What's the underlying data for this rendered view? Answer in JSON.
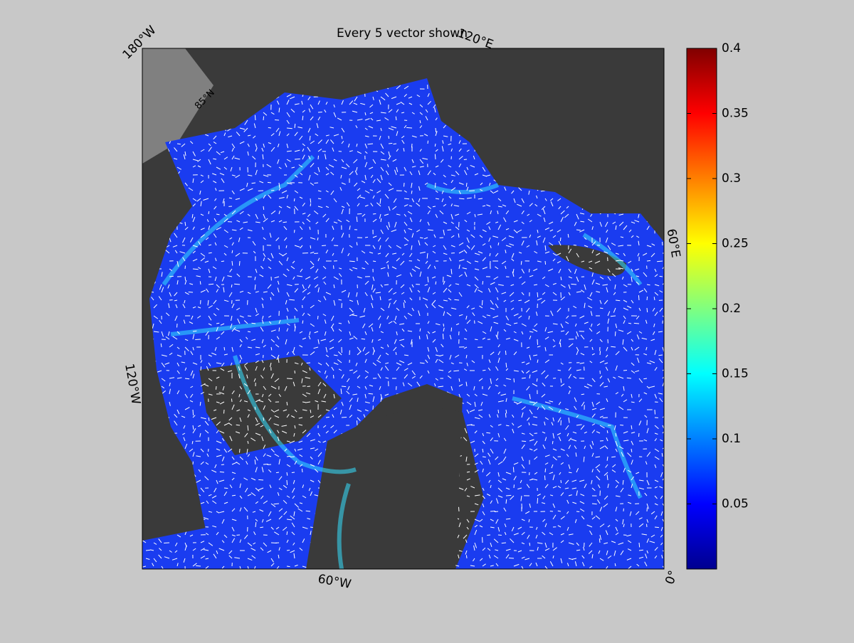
{
  "title": "Every 5 vector shown",
  "map": {
    "labels": [
      "180°W",
      "120°E",
      "60°E",
      "0°",
      "60°W",
      "120°W",
      "85°N"
    ]
  },
  "colorbar": {
    "colormap": "jet",
    "lim": [
      0,
      0.4
    ],
    "ticks": [
      0.05,
      0.1,
      0.15,
      0.2,
      0.25,
      0.3,
      0.35,
      0.4
    ]
  }
}
